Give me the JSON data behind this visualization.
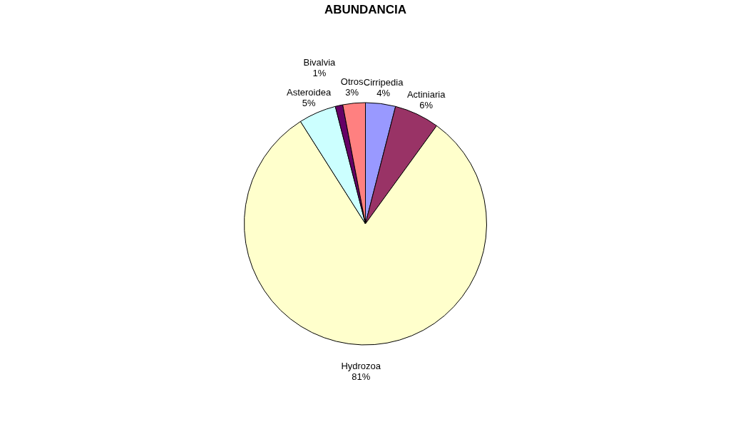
{
  "chart_data": {
    "type": "pie",
    "title": "ABUNDANCIA",
    "categories": [
      "Cirripedia",
      "Actiniaria",
      "Hydrozoa",
      "Asteroidea",
      "Bivalvia",
      "Otros"
    ],
    "values": [
      4,
      6,
      81,
      5,
      1,
      3
    ],
    "colors": [
      "#9999ff",
      "#993366",
      "#ffffcc",
      "#ccffff",
      "#660066",
      "#ff8080"
    ],
    "value_labels": [
      "4%",
      "6%",
      "81%",
      "5%",
      "1%",
      "3%"
    ],
    "legend": false
  }
}
